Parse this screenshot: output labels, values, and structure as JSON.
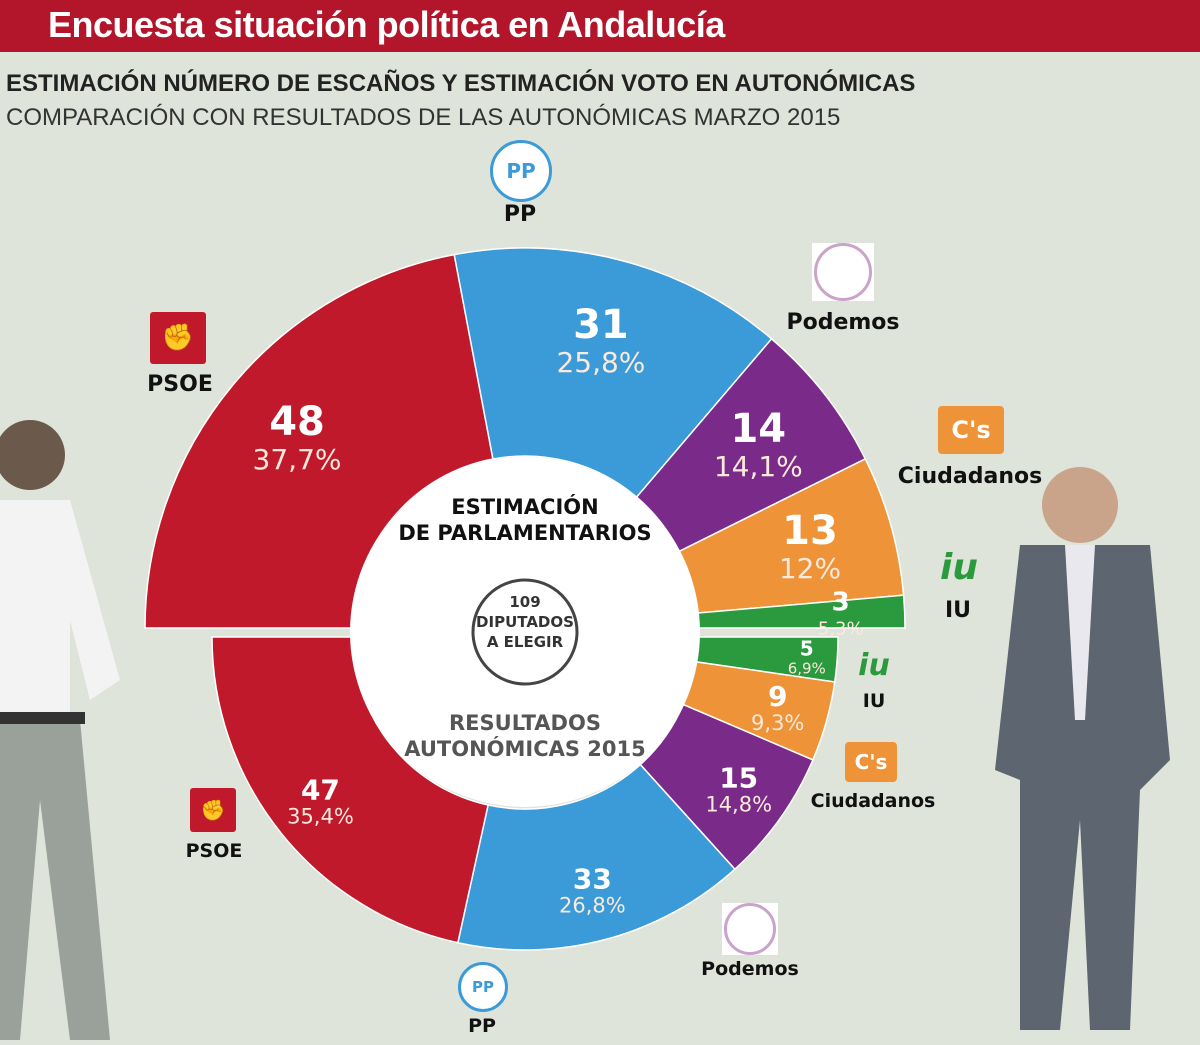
{
  "title": "Encuesta situación política en Andalucía",
  "subtitle1": "ESTIMACIÓN NÚMERO DE ESCAÑOS Y ESTIMACIÓN VOTO EN AUTONÓMICAS",
  "subtitle2": "COMPARACIÓN CON RESULTADOS DE LAS AUTONÓMICAS MARZO 2015",
  "center": {
    "top_label_1": "ESTIMACIÓN",
    "top_label_2": "DE PARLAMENTARIOS",
    "total": "109",
    "total_line2": "DIPUTADOS",
    "total_line3": "A ELEGIR",
    "bottom_label_1": "RESULTADOS",
    "bottom_label_2": "AUTONÓMICAS 2015"
  },
  "logos": {
    "pp": "PP",
    "cs": "C's",
    "iu": "iu"
  },
  "chart_data": [
    {
      "type": "pie",
      "title": "ESTIMACIÓN DE PARLAMENTARIOS",
      "categories": [
        "PSOE",
        "PP",
        "Podemos",
        "Ciudadanos",
        "IU"
      ],
      "seats": [
        48,
        31,
        14,
        13,
        3
      ],
      "vote_pct": [
        "37,7%",
        "25,8%",
        "14,1%",
        "12%",
        "5,3%"
      ],
      "colors": [
        "#c0192c",
        "#3b9ad8",
        "#7a2a89",
        "#ee9338",
        "#2b9a3e"
      ]
    },
    {
      "type": "pie",
      "title": "RESULTADOS AUTONÓMICAS 2015",
      "categories": [
        "IU",
        "Ciudadanos",
        "Podemos",
        "PP",
        "PSOE"
      ],
      "seats": [
        5,
        9,
        15,
        33,
        47
      ],
      "vote_pct": [
        "6,9%",
        "9,3%",
        "14,8%",
        "26,8%",
        "35,4%"
      ],
      "colors": [
        "#2b9a3e",
        "#ee9338",
        "#7a2a89",
        "#3b9ad8",
        "#c0192c"
      ]
    }
  ]
}
